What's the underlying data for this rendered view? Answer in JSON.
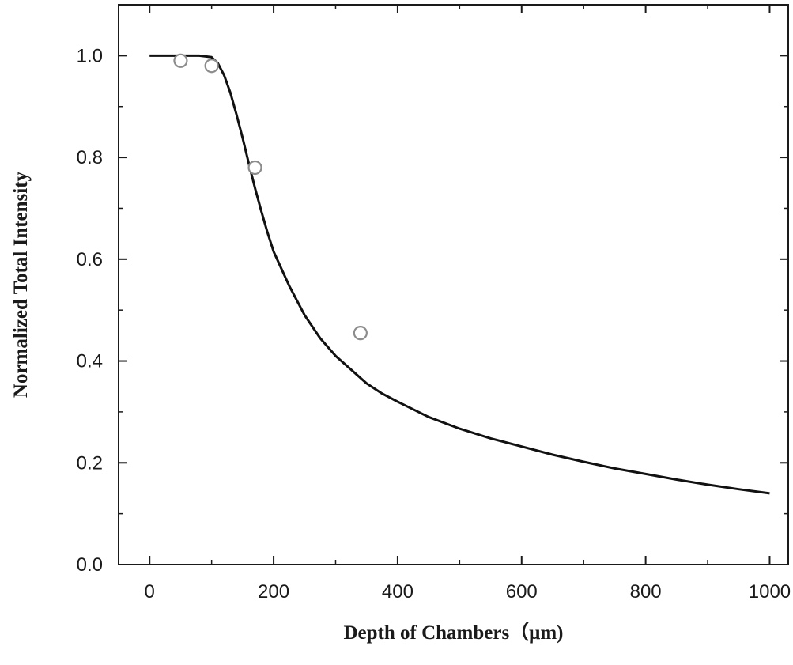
{
  "chart_data": {
    "type": "scatter",
    "title": "",
    "xlabel": "Depth of Chambers（μm)",
    "ylabel": "Normalized Total Intensity",
    "xlim": [
      -50,
      1030
    ],
    "ylim": [
      0.0,
      1.1
    ],
    "x_ticks": [
      0,
      200,
      400,
      600,
      800,
      1000
    ],
    "x_tick_labels": [
      "0",
      "200",
      "400",
      "600",
      "800",
      "1000"
    ],
    "y_ticks": [
      0.0,
      0.2,
      0.4,
      0.6,
      0.8,
      1.0
    ],
    "y_tick_labels": [
      "0.0",
      "0.2",
      "0.4",
      "0.6",
      "0.8",
      "1.0"
    ],
    "grid": false,
    "legend": "none",
    "series": [
      {
        "kind": "scatter",
        "marker": "open-circle",
        "color": "#8c8c8c",
        "points": [
          [
            50,
            0.99
          ],
          [
            100,
            0.98
          ],
          [
            170,
            0.78
          ],
          [
            340,
            0.455
          ]
        ]
      },
      {
        "kind": "line",
        "color": "#111111",
        "points": [
          [
            0,
            1.0
          ],
          [
            20,
            1.0
          ],
          [
            40,
            1.0
          ],
          [
            60,
            1.0
          ],
          [
            80,
            1.0
          ],
          [
            100,
            0.997
          ],
          [
            110,
            0.985
          ],
          [
            120,
            0.962
          ],
          [
            130,
            0.928
          ],
          [
            140,
            0.885
          ],
          [
            150,
            0.838
          ],
          [
            160,
            0.788
          ],
          [
            170,
            0.74
          ],
          [
            180,
            0.695
          ],
          [
            190,
            0.653
          ],
          [
            200,
            0.615
          ],
          [
            225,
            0.548
          ],
          [
            250,
            0.49
          ],
          [
            275,
            0.445
          ],
          [
            300,
            0.41
          ],
          [
            325,
            0.383
          ],
          [
            350,
            0.356
          ],
          [
            375,
            0.336
          ],
          [
            400,
            0.32
          ],
          [
            450,
            0.29
          ],
          [
            500,
            0.267
          ],
          [
            550,
            0.248
          ],
          [
            600,
            0.232
          ],
          [
            650,
            0.216
          ],
          [
            700,
            0.202
          ],
          [
            750,
            0.189
          ],
          [
            800,
            0.178
          ],
          [
            850,
            0.167
          ],
          [
            900,
            0.157
          ],
          [
            950,
            0.148
          ],
          [
            1000,
            0.14
          ]
        ]
      }
    ]
  }
}
